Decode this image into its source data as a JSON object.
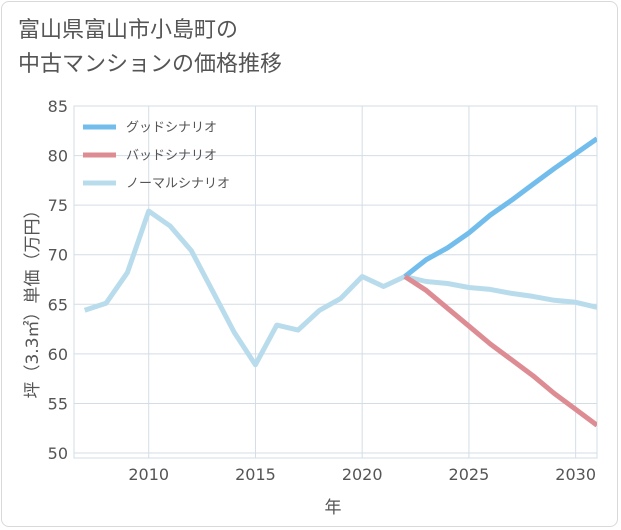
{
  "title_lines": [
    "富山県富山市小島町の",
    "中古マンションの価格推移"
  ],
  "chart_data": {
    "type": "line",
    "xlabel": "年",
    "ylabel": "坪（3.3㎡）単価（万円）",
    "xlim": [
      2006.5,
      2031
    ],
    "ylim": [
      49.5,
      85
    ],
    "xticks": [
      2010,
      2015,
      2020,
      2025,
      2030
    ],
    "yticks": [
      50,
      55,
      60,
      65,
      70,
      75,
      80,
      85
    ],
    "grid": true,
    "legend_position": "top-left",
    "series": [
      {
        "name": "グッドシナリオ",
        "color": "#72bdec",
        "x": [
          2022,
          2023,
          2024,
          2025,
          2026,
          2027,
          2028,
          2029,
          2030,
          2031
        ],
        "values": [
          67.8,
          69.5,
          70.7,
          72.2,
          74.0,
          75.5,
          77.1,
          78.7,
          80.2,
          81.7
        ]
      },
      {
        "name": "バッドシナリオ",
        "color": "#de8c93",
        "x": [
          2022,
          2023,
          2024,
          2025,
          2026,
          2027,
          2028,
          2029,
          2030,
          2031
        ],
        "values": [
          67.8,
          66.4,
          64.6,
          62.8,
          61.0,
          59.4,
          57.8,
          56.0,
          54.4,
          52.8
        ]
      },
      {
        "name": "ノーマルシナリオ",
        "color": "#b9dcec",
        "x": [
          2007,
          2008,
          2009,
          2010,
          2011,
          2012,
          2013,
          2014,
          2015,
          2016,
          2017,
          2018,
          2019,
          2020,
          2021,
          2022,
          2023,
          2024,
          2025,
          2026,
          2027,
          2028,
          2029,
          2030,
          2031
        ],
        "values": [
          64.4,
          65.1,
          68.2,
          74.4,
          72.9,
          70.4,
          66.3,
          62.2,
          58.9,
          62.9,
          62.4,
          64.4,
          65.6,
          67.8,
          66.8,
          67.8,
          67.3,
          67.1,
          66.7,
          66.5,
          66.1,
          65.8,
          65.4,
          65.2,
          64.7
        ]
      }
    ]
  }
}
